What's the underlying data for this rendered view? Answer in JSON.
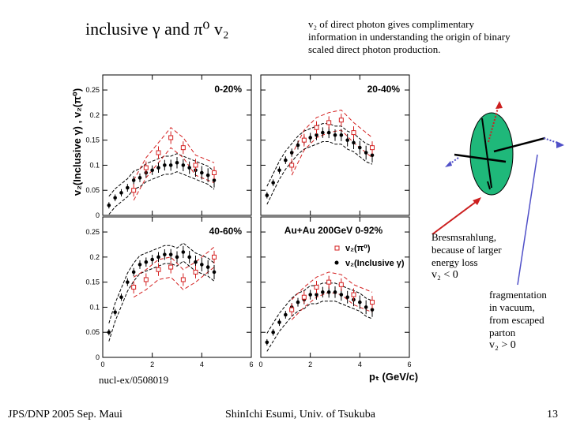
{
  "slide": {
    "title": "inclusive γ and π⁰ v₂",
    "note": "v₂ of direct photon gives complimentary information in understanding the origin of binary scaled direct photon production.",
    "reference": "nucl-ex/0508019",
    "footer_left": "JPS/DNP 2005 Sep. Maui",
    "footer_center": "ShinIchi Esumi, Univ. of Tsukuba",
    "page_number": "13"
  },
  "annotations": {
    "bremsstrahlung": [
      "Bresmsrahlung,",
      "because of larger",
      "energy loss",
      "v₂ < 0"
    ],
    "fragmentation": [
      "fragmentation",
      "in vacuum,",
      "from escaped",
      "parton",
      "v₂ > 0"
    ]
  },
  "figure": {
    "y_axis_label": "v₂(Inclusive γ) ,  v₂(π⁰)",
    "x_axis_label": "pₜ (GeV/c)",
    "system_label": "Au+Au 200GeV  0-92%",
    "legend": [
      "v₂(π⁰)",
      "v₂(Inclusive γ)"
    ],
    "colors": {
      "pi0": "#d42020",
      "inclusive": "#000000",
      "band": "#000000"
    }
  },
  "chart_data": [
    {
      "type": "scatter",
      "panel": "0-20%",
      "xlabel": "pT (GeV/c)",
      "ylabel": "v2",
      "xlim": [
        0,
        6
      ],
      "ylim": [
        0,
        0.28
      ],
      "y_ticks": [
        0,
        0.05,
        0.1,
        0.15,
        0.2,
        0.25
      ],
      "series": [
        {
          "name": "v2(Inclusive gamma)",
          "x": [
            0.25,
            0.5,
            0.75,
            1.0,
            1.25,
            1.5,
            1.75,
            2.0,
            2.25,
            2.5,
            2.75,
            3.0,
            3.25,
            3.5,
            3.75,
            4.0,
            4.25,
            4.5
          ],
          "y": [
            0.02,
            0.035,
            0.045,
            0.055,
            0.07,
            0.075,
            0.085,
            0.09,
            0.095,
            0.1,
            0.1,
            0.105,
            0.1,
            0.095,
            0.09,
            0.085,
            0.08,
            0.07
          ]
        },
        {
          "name": "v2(pi0)",
          "x": [
            1.25,
            1.75,
            2.25,
            2.75,
            3.25,
            3.75,
            4.5
          ],
          "y": [
            0.05,
            0.095,
            0.125,
            0.155,
            0.135,
            0.1,
            0.085
          ]
        }
      ]
    },
    {
      "type": "scatter",
      "panel": "20-40%",
      "xlabel": "pT (GeV/c)",
      "ylabel": "v2",
      "xlim": [
        0,
        6
      ],
      "ylim": [
        0,
        0.28
      ],
      "y_ticks": [
        0,
        0.05,
        0.1,
        0.15,
        0.2,
        0.25
      ],
      "series": [
        {
          "name": "v2(Inclusive gamma)",
          "x": [
            0.25,
            0.5,
            0.75,
            1.0,
            1.25,
            1.5,
            1.75,
            2.0,
            2.25,
            2.5,
            2.75,
            3.0,
            3.25,
            3.5,
            3.75,
            4.0,
            4.25,
            4.5
          ],
          "y": [
            0.04,
            0.065,
            0.09,
            0.11,
            0.125,
            0.14,
            0.15,
            0.155,
            0.16,
            0.165,
            0.165,
            0.16,
            0.16,
            0.15,
            0.145,
            0.135,
            0.125,
            0.12
          ]
        },
        {
          "name": "v2(pi0)",
          "x": [
            1.25,
            1.75,
            2.25,
            2.75,
            3.25,
            3.75,
            4.5
          ],
          "y": [
            0.1,
            0.15,
            0.175,
            0.185,
            0.19,
            0.165,
            0.135
          ]
        }
      ]
    },
    {
      "type": "scatter",
      "panel": "40-60%",
      "xlabel": "pT (GeV/c)",
      "ylabel": "v2",
      "xlim": [
        0,
        6
      ],
      "ylim": [
        0,
        0.28
      ],
      "y_ticks": [
        0,
        0.05,
        0.1,
        0.15,
        0.2,
        0.25
      ],
      "series": [
        {
          "name": "v2(Inclusive gamma)",
          "x": [
            0.25,
            0.5,
            0.75,
            1.0,
            1.25,
            1.5,
            1.75,
            2.0,
            2.25,
            2.5,
            2.75,
            3.0,
            3.25,
            3.5,
            3.75,
            4.0,
            4.25,
            4.5
          ],
          "y": [
            0.05,
            0.09,
            0.12,
            0.15,
            0.17,
            0.185,
            0.19,
            0.195,
            0.2,
            0.205,
            0.205,
            0.2,
            0.21,
            0.2,
            0.19,
            0.185,
            0.18,
            0.17
          ]
        },
        {
          "name": "v2(pi0)",
          "x": [
            1.25,
            1.75,
            2.25,
            2.75,
            3.25,
            3.75,
            4.5
          ],
          "y": [
            0.14,
            0.155,
            0.175,
            0.18,
            0.155,
            0.17,
            0.2
          ]
        }
      ]
    },
    {
      "type": "scatter",
      "panel": "0-92%",
      "xlabel": "pT (GeV/c)",
      "ylabel": "v2",
      "xlim": [
        0,
        6
      ],
      "ylim": [
        0,
        0.28
      ],
      "y_ticks": [
        0,
        0.05,
        0.1,
        0.15,
        0.2,
        0.25
      ],
      "series": [
        {
          "name": "v2(Inclusive gamma)",
          "x": [
            0.25,
            0.5,
            0.75,
            1.0,
            1.25,
            1.5,
            1.75,
            2.0,
            2.25,
            2.5,
            2.75,
            3.0,
            3.25,
            3.5,
            3.75,
            4.0,
            4.25,
            4.5
          ],
          "y": [
            0.03,
            0.05,
            0.07,
            0.085,
            0.1,
            0.11,
            0.115,
            0.125,
            0.125,
            0.13,
            0.13,
            0.13,
            0.125,
            0.12,
            0.115,
            0.11,
            0.1,
            0.095
          ]
        },
        {
          "name": "v2(pi0)",
          "x": [
            1.25,
            1.75,
            2.25,
            2.75,
            3.25,
            3.75,
            4.5
          ],
          "y": [
            0.095,
            0.12,
            0.14,
            0.15,
            0.145,
            0.125,
            0.11
          ]
        }
      ]
    }
  ]
}
